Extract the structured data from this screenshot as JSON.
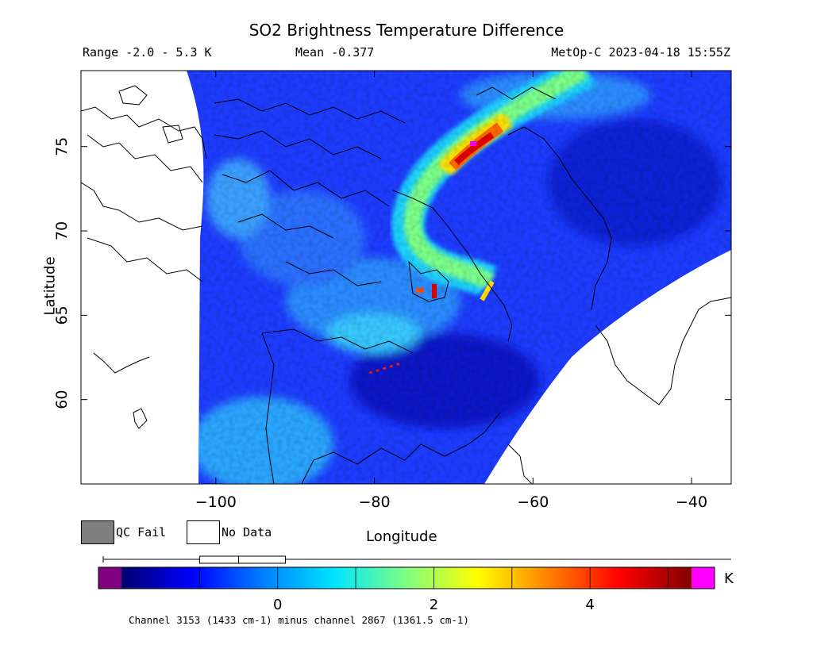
{
  "chart_data": {
    "type": "heatmap",
    "title": "SO2 Brightness Temperature Difference",
    "header": {
      "range": "Range -2.0 - 5.3 K",
      "mean": "Mean -0.377",
      "satellite_time": "MetOp-C 2023-04-18 15:55Z"
    },
    "xlabel": "Longitude",
    "ylabel": "Latitude",
    "xlim": [
      -117,
      -35
    ],
    "ylim": [
      55,
      79.5
    ],
    "x_ticks": [
      -100,
      -80,
      -60,
      -40
    ],
    "y_ticks": [
      60,
      65,
      70,
      75
    ],
    "x_tick_labels": [
      "−100",
      "−80",
      "−60",
      "−40"
    ],
    "y_tick_labels": [
      "60",
      "65",
      "70",
      "75"
    ],
    "colorbar": {
      "ticks": [
        0,
        2,
        4
      ],
      "unit": "K",
      "range": [
        -2.0,
        5.3
      ],
      "colors": [
        "#800080",
        "#00006e",
        "#0000ff",
        "#0080ff",
        "#00e6ff",
        "#80ff80",
        "#ffff00",
        "#ff8000",
        "#ff0000",
        "#800000",
        "#ff00ff"
      ],
      "boxplot": {
        "min": -2.0,
        "q1": -1.0,
        "median": -0.5,
        "q3": 0.1,
        "max": 5.3
      }
    },
    "legend": [
      {
        "label": "QC Fail",
        "color": "#7f7f7f"
      },
      {
        "label": "No Data",
        "color": "#ffffff"
      }
    ],
    "plume": {
      "description_points": [
        [
          -65,
          79.5
        ],
        [
          -68,
          76
        ],
        [
          -73,
          73
        ],
        [
          -76,
          70
        ],
        [
          -75,
          68
        ],
        [
          -72,
          66.8
        ]
      ],
      "peak_value": 4.8,
      "peak_location": [
        -69,
        74.5
      ]
    },
    "caption": "Channel 3153 (1433 cm-1) minus channel 2867 (1361.5 cm-1)"
  }
}
